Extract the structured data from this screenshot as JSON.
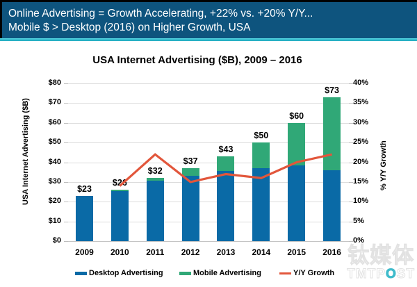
{
  "header": {
    "line1": "Online Advertising = Growth Accelerating, +22% vs. +20% Y/Y...",
    "line2": "Mobile $ > Desktop (2016) on Higher Growth, USA",
    "bg_color": "#0E547E",
    "accent_color": "#2FB8CC",
    "text_color": "#FFFFFF"
  },
  "chart_data": {
    "type": "bar",
    "subtype": "stacked-bars-with-line-overlay",
    "title": "USA Internet Advertising ($B), 2009 – 2016",
    "categories": [
      "2009",
      "2010",
      "2011",
      "2012",
      "2013",
      "2014",
      "2015",
      "2016"
    ],
    "series": [
      {
        "name": "Desktop Advertising",
        "type": "bar",
        "axis": "left",
        "color": "#0A6AA6",
        "values": [
          23,
          25.5,
          30.5,
          33,
          35.5,
          37,
          38.5,
          36
        ]
      },
      {
        "name": "Mobile Advertising",
        "type": "bar",
        "axis": "left",
        "color": "#30A877",
        "values": [
          0,
          0.5,
          1.5,
          4,
          7.5,
          13,
          21.5,
          37
        ]
      },
      {
        "name": "Y/Y Growth",
        "type": "line",
        "axis": "right",
        "color": "#E2563B",
        "values": [
          null,
          14,
          22,
          15,
          17,
          16,
          20,
          22
        ]
      }
    ],
    "bar_total_labels": [
      "$23",
      "$26",
      "$32",
      "$37",
      "$43",
      "$50",
      "$60",
      "$73"
    ],
    "left_axis": {
      "label": "USA Internet Advertising ($B)",
      "min": 0,
      "max": 80,
      "step": 10,
      "ticks": [
        "$0",
        "$10",
        "$20",
        "$30",
        "$40",
        "$50",
        "$60",
        "$70",
        "$80"
      ]
    },
    "right_axis": {
      "label": "% Y/Y Growth",
      "min": 0,
      "max": 40,
      "step": 5,
      "ticks": [
        "0%",
        "5%",
        "10%",
        "15%",
        "20%",
        "25%",
        "30%",
        "35%",
        "40%"
      ]
    },
    "grid": true,
    "legend_position": "bottom"
  },
  "watermark": {
    "cjk": "钛媒体",
    "latin_prefix": "TMTP",
    "latin_o": "O",
    "latin_suffix": "ST",
    "accent_color": "#3FBBCB"
  }
}
